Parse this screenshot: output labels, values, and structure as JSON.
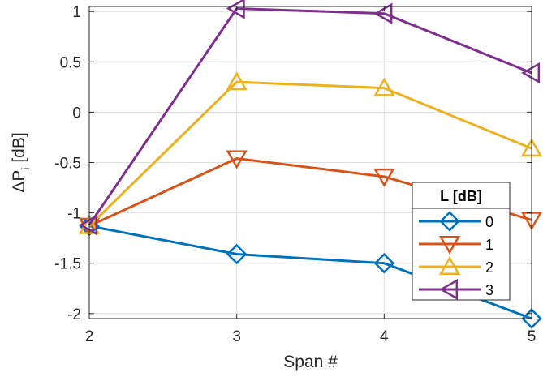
{
  "chart_data": {
    "type": "line",
    "title": "",
    "xlabel": "Span #",
    "ylabel_main": "ΔP",
    "ylabel_sub": "i",
    "ylabel_unit": " [dB]",
    "x": [
      2,
      3,
      4,
      5
    ],
    "xlim": [
      2,
      5
    ],
    "ylim": [
      -2.05,
      1.05
    ],
    "xticks": [
      "2",
      "3",
      "4",
      "5"
    ],
    "yticks": [
      {
        "value": 1,
        "label": "1"
      },
      {
        "value": 0.5,
        "label": "0.5"
      },
      {
        "value": 0,
        "label": "0"
      },
      {
        "value": -0.5,
        "label": "-0.5"
      },
      {
        "value": -1,
        "label": "-1"
      },
      {
        "value": -1.5,
        "label": "-1.5"
      },
      {
        "value": -2,
        "label": "-2"
      }
    ],
    "grid": true,
    "legend": {
      "title": "L [dB]",
      "position": "right"
    },
    "series": [
      {
        "name": "0",
        "values": [
          -1.13,
          -1.41,
          -1.5,
          -2.05
        ],
        "color": "#0072BD",
        "marker": "diamond"
      },
      {
        "name": "1",
        "values": [
          -1.13,
          -0.46,
          -0.64,
          -1.07
        ],
        "color": "#D95319",
        "marker": "triangle-down"
      },
      {
        "name": "2",
        "values": [
          -1.13,
          0.3,
          0.24,
          -0.36
        ],
        "color": "#EDB120",
        "marker": "triangle-up"
      },
      {
        "name": "3",
        "values": [
          -1.12,
          1.03,
          0.98,
          0.39
        ],
        "color": "#7E2F8E",
        "marker": "triangle-left"
      }
    ]
  }
}
